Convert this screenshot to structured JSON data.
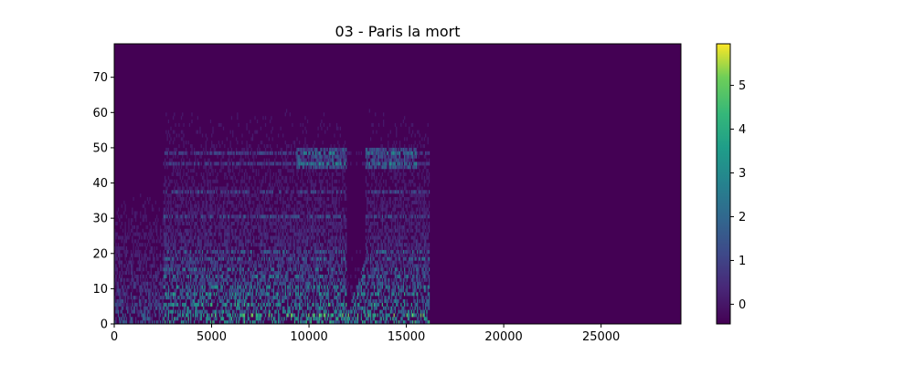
{
  "chart_data": {
    "type": "heatmap",
    "title": "03 - Paris la mort",
    "xlabel": "",
    "ylabel": "",
    "xlim": [
      0,
      29100
    ],
    "ylim": [
      0,
      79.5
    ],
    "x_ticks": [
      0,
      5000,
      10000,
      15000,
      20000,
      25000
    ],
    "x_tick_labels": [
      "0",
      "5000",
      "10000",
      "15000",
      "20000",
      "25000"
    ],
    "y_ticks": [
      0,
      10,
      20,
      30,
      40,
      50,
      60,
      70
    ],
    "y_tick_labels": [
      "0",
      "10",
      "20",
      "30",
      "40",
      "50",
      "60",
      "70"
    ],
    "colorbar": {
      "range": [
        -0.45,
        5.95
      ],
      "ticks": [
        0,
        1,
        2,
        3,
        4,
        5
      ],
      "tick_labels": [
        "0",
        "1",
        "2",
        "3",
        "4",
        "5"
      ],
      "colormap": "viridis"
    },
    "data_extent_x": 16200,
    "gap_region_x": [
      11900,
      12900
    ],
    "background_value": -0.45,
    "colors": {
      "background": "#440154",
      "low": "#3b528b",
      "mid": "#21918c",
      "high": "#5ec962",
      "max": "#fde725"
    }
  }
}
